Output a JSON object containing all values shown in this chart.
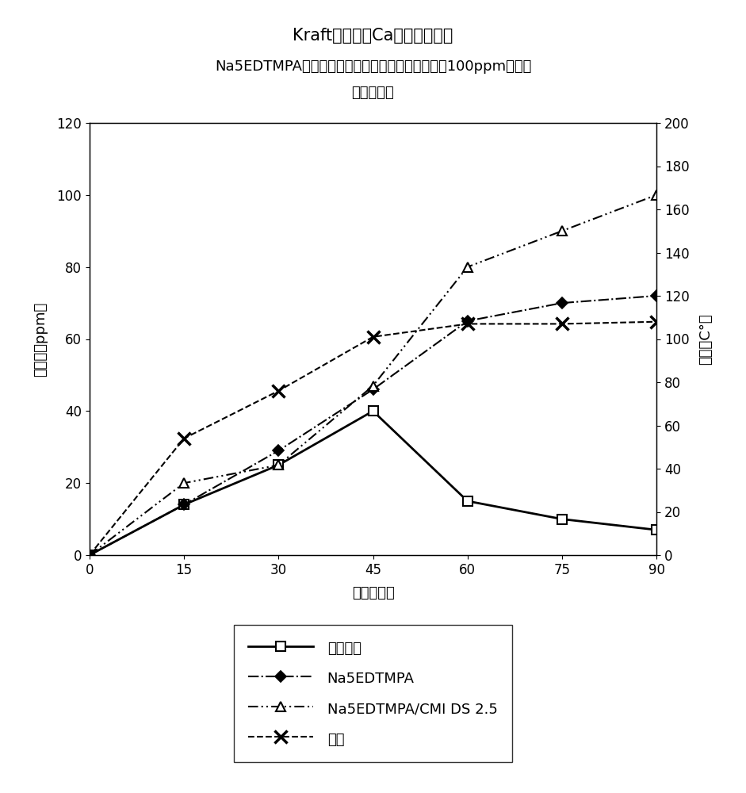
{
  "title_line1": "Kraft蒸煮中的Ca性能抑制曲线",
  "title_line2": "Na5EDTMPA（乙二胺四亚甲基膦酸的钠盐）及具有100ppm抑制剂",
  "title_line3": "的混合体系",
  "xlabel": "时间（分）",
  "ylabel_left": "钙浓度（ppm）",
  "ylabel_right": "温度（C°）",
  "x": [
    0,
    15,
    30,
    45,
    60,
    75,
    90
  ],
  "no_inhibitor": [
    0,
    14,
    25,
    40,
    15,
    10,
    7
  ],
  "na5edtmpa": [
    0,
    14,
    29,
    46,
    65,
    70,
    72
  ],
  "na5edtmpa_cmi": [
    0,
    20,
    25,
    47,
    80,
    90,
    100
  ],
  "temperature": [
    0,
    54,
    76,
    101,
    107,
    107,
    108
  ],
  "ylim_left": [
    0,
    120
  ],
  "ylim_right": [
    0,
    200
  ],
  "xticks": [
    0,
    15,
    30,
    45,
    60,
    75,
    90
  ],
  "yticks_left": [
    0,
    20,
    40,
    60,
    80,
    100,
    120
  ],
  "yticks_right": [
    0,
    20,
    40,
    60,
    80,
    100,
    120,
    140,
    160,
    180,
    200
  ],
  "legend_labels": [
    "无抑制剂",
    "Na5EDTMPA",
    "Na5EDTMPA/CMI DS 2.5",
    "温度"
  ],
  "bg_color": "#ffffff",
  "title_fontsize": 15,
  "title2_fontsize": 13,
  "label_fontsize": 13,
  "tick_fontsize": 12,
  "legend_fontsize": 13
}
